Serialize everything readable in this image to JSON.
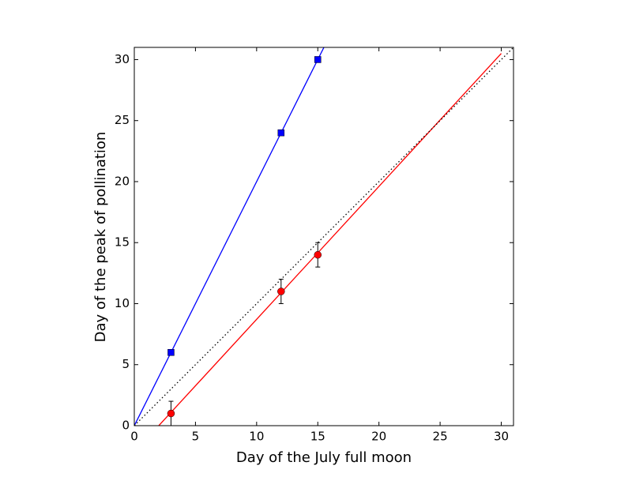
{
  "chart_data": {
    "type": "scatter",
    "xlabel": "Day of the July full moon",
    "ylabel": "Day of the peak of pollination",
    "xlim": [
      0,
      31
    ],
    "ylim": [
      0,
      31
    ],
    "xticks": [
      0,
      5,
      10,
      15,
      20,
      25,
      30
    ],
    "yticks": [
      0,
      5,
      10,
      15,
      20,
      25,
      30
    ],
    "grid": false,
    "series": [
      {
        "color": "#0000ff",
        "marker": "square",
        "x": [
          3,
          12,
          15
        ],
        "values": [
          6,
          24,
          30
        ]
      },
      {
        "color": "#ff0000",
        "marker": "circle",
        "x": [
          3,
          12,
          15
        ],
        "values": [
          1,
          11,
          14
        ],
        "errors": [
          1,
          1,
          1
        ]
      },
      {
        "color": "#0000ff",
        "linestyle": "solid",
        "x": [
          0,
          15.5
        ],
        "values": [
          0,
          31
        ]
      },
      {
        "color": "#ff0000",
        "linestyle": "solid",
        "x": [
          2,
          30
        ],
        "values": [
          0,
          30.5
        ]
      },
      {
        "color": "#000000",
        "linestyle": "dotted",
        "x": [
          0,
          31
        ],
        "values": [
          0,
          31
        ]
      }
    ]
  }
}
